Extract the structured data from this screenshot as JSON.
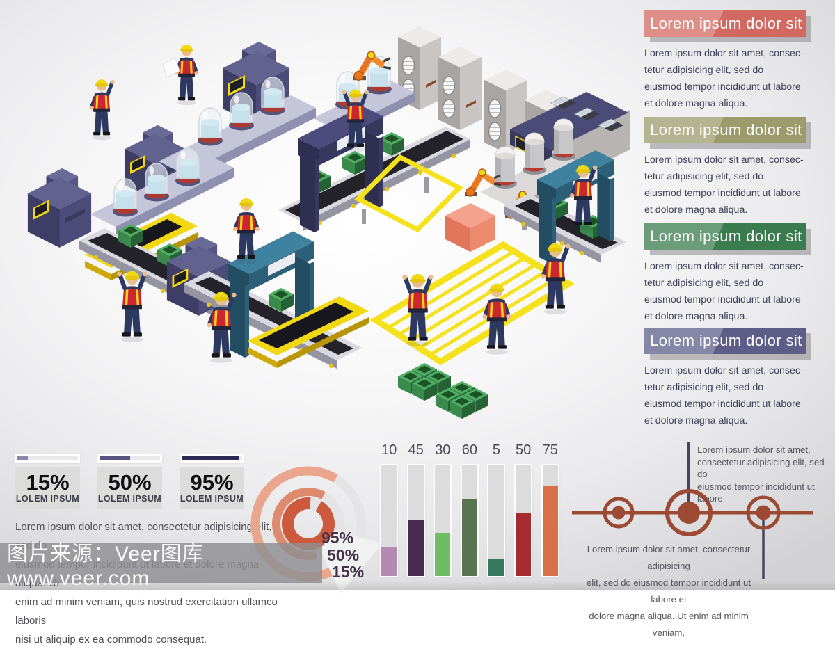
{
  "panel": {
    "sections": [
      {
        "title": "Lorem ipsum dolor sit",
        "color": "#d26960",
        "lines": [
          "Lorem ipsum dolor sit amet, consec-",
          "tetur adipisicing elit, sed do",
          "eiusmod tempor incididunt ut labore",
          "et dolore magna aliqua."
        ]
      },
      {
        "title": "Lorem ipsum dolor sit",
        "color": "#9b9b6b",
        "lines": [
          "Lorem ipsum dolor sit amet, consec-",
          "tetur adipisicing elit, sed do",
          "eiusmod tempor incididunt ut labore",
          "et dolore magna aliqua."
        ]
      },
      {
        "title": "Lorem ipsum dolor sit",
        "color": "#3a7c4d",
        "lines": [
          "Lorem ipsum dolor sit amet, consec-",
          "tetur adipisicing elit, sed do",
          "eiusmod tempor incididunt ut labore",
          "et dolore magna aliqua."
        ]
      },
      {
        "title": "Lorem ipsum dolor sit",
        "color": "#5d5d88",
        "lines": [
          "Lorem ipsum dolor sit amet, consec-",
          "tetur adipisicing elit, sed do",
          "eiusmod tempor incididunt ut labore",
          "et dolore magna aliqua."
        ]
      }
    ]
  },
  "stats": {
    "items": [
      {
        "value": "15%",
        "label": "LOLEM IPSUM",
        "fill_pct": 17,
        "color": "#8b87a8"
      },
      {
        "value": "50%",
        "label": "LOLEM IPSUM",
        "fill_pct": 50,
        "color": "#57547e"
      },
      {
        "value": "95%",
        "label": "LOLEM IPSUM",
        "fill_pct": 95,
        "color": "#2c2a52"
      }
    ]
  },
  "paragraph": {
    "lines": [
      "Lorem ipsum dolor sit amet, consectetur adipisicing elit, sed do",
      "eiusmod tempor incididunt ut labore et dolore magna aliqua. Ut",
      "enim ad minim veniam, quis nostrud exercitation ullamco laboris",
      "nisi ut aliquip ex ea commodo consequat."
    ]
  },
  "watermark": {
    "text": "图片来源：Veer图库 www.veer.com"
  },
  "chart_data": [
    {
      "type": "donut",
      "rings": [
        {
          "label": "95%",
          "value": 95,
          "display_pct": 93,
          "fill_color": "#ce5a3d"
        },
        {
          "label": "50%",
          "value": 50,
          "display_pct": 62,
          "fill_color": "#df8a6c"
        },
        {
          "label": "15%",
          "value": 15,
          "display_pct": 67,
          "fill_color": "#e9a68d"
        }
      ],
      "track_color": "#e4e4e6",
      "label_color": "#443349",
      "legend_position": "right-bottom"
    },
    {
      "type": "bar",
      "labels": [
        "10",
        "45",
        "30",
        "60",
        "5",
        "50",
        "75"
      ],
      "values": [
        10,
        45,
        30,
        60,
        5,
        50,
        75
      ],
      "colors": [
        "#b58ab0",
        "#4b2a52",
        "#6fbc62",
        "#5a7350",
        "#37795f",
        "#a62b31",
        "#d96f49"
      ],
      "display_fill_pcts": [
        26,
        51,
        39,
        70,
        16,
        57,
        82
      ],
      "track_color": "#dcdcdd",
      "ylim": [
        0,
        100
      ],
      "grid": false
    }
  ],
  "plane_diagram": {
    "top_lines": [
      "Lorem ipsum dolor sit amet,",
      "consectetur adipisicing elit, sed do",
      "eiusmod tempor incididunt ut labore"
    ],
    "bottom_lines": [
      "Lorem ipsum dolor sit amet, consectetur adipisicing",
      "elit, sed do eiusmod tempor incididunt ut labore et",
      "dolore magna aliqua. Ut enim ad minim veniam,"
    ],
    "line_color": "#9c4a33",
    "stem_color": "#4a4260"
  },
  "illustration_palette": {
    "machine_navy": "#4c4c7a",
    "safety_vest_red": "#cc2730",
    "helmet_yellow": "#f2d713",
    "conveyor_gray": "#d8d8de",
    "crate_green": "#3a8a4b",
    "floor_marking_yellow": "#f5e11c",
    "glass_tank_blue": "#8cc8dc",
    "robot_arm_orange": "#e8761f",
    "gantry_teal": "#3f82a0",
    "cabinet_gray": "#a9a5a2"
  }
}
